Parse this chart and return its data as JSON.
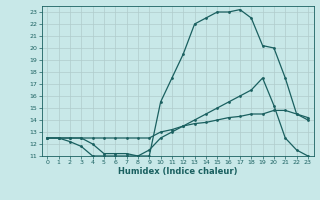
{
  "line1_x": [
    0,
    1,
    2,
    3,
    4,
    5,
    6,
    7,
    8,
    9,
    10,
    11,
    12,
    13,
    14,
    15,
    16,
    17,
    18,
    19,
    20,
    21,
    22,
    23
  ],
  "line1_y": [
    12.5,
    12.5,
    12.5,
    12.5,
    12.0,
    11.2,
    11.2,
    11.2,
    11.0,
    11.0,
    15.5,
    17.5,
    19.5,
    22.0,
    22.5,
    23.0,
    23.0,
    23.2,
    22.5,
    20.2,
    20.0,
    17.5,
    14.5,
    14.0
  ],
  "line2_x": [
    0,
    1,
    2,
    3,
    4,
    5,
    6,
    7,
    8,
    9,
    10,
    11,
    12,
    13,
    14,
    15,
    16,
    17,
    18,
    19,
    20,
    21,
    22,
    23
  ],
  "line2_y": [
    12.5,
    12.5,
    12.2,
    11.8,
    11.0,
    11.0,
    11.0,
    11.0,
    11.0,
    11.5,
    12.5,
    13.0,
    13.5,
    14.0,
    14.5,
    15.0,
    15.5,
    16.0,
    16.5,
    17.5,
    15.2,
    12.5,
    11.5,
    11.0
  ],
  "line3_x": [
    0,
    1,
    2,
    3,
    4,
    5,
    6,
    7,
    8,
    9,
    10,
    11,
    12,
    13,
    14,
    15,
    16,
    17,
    18,
    19,
    20,
    21,
    22,
    23
  ],
  "line3_y": [
    12.5,
    12.5,
    12.5,
    12.5,
    12.5,
    12.5,
    12.5,
    12.5,
    12.5,
    12.5,
    13.0,
    13.2,
    13.5,
    13.7,
    13.8,
    14.0,
    14.2,
    14.3,
    14.5,
    14.5,
    14.8,
    14.8,
    14.5,
    14.2
  ],
  "bg_color": "#c8e8e8",
  "line_color": "#1a6060",
  "grid_color": "#b0cccc",
  "xlabel": "Humidex (Indice chaleur)",
  "ylim": [
    11,
    23.5
  ],
  "xlim": [
    -0.5,
    23.5
  ],
  "yticks": [
    11,
    12,
    13,
    14,
    15,
    16,
    17,
    18,
    19,
    20,
    21,
    22,
    23
  ],
  "xticks": [
    0,
    1,
    2,
    3,
    4,
    5,
    6,
    7,
    8,
    9,
    10,
    11,
    12,
    13,
    14,
    15,
    16,
    17,
    18,
    19,
    20,
    21,
    22,
    23
  ],
  "xlabel_fontsize": 6,
  "tick_fontsize": 4.5,
  "marker_size": 2.0,
  "line_width": 0.9
}
